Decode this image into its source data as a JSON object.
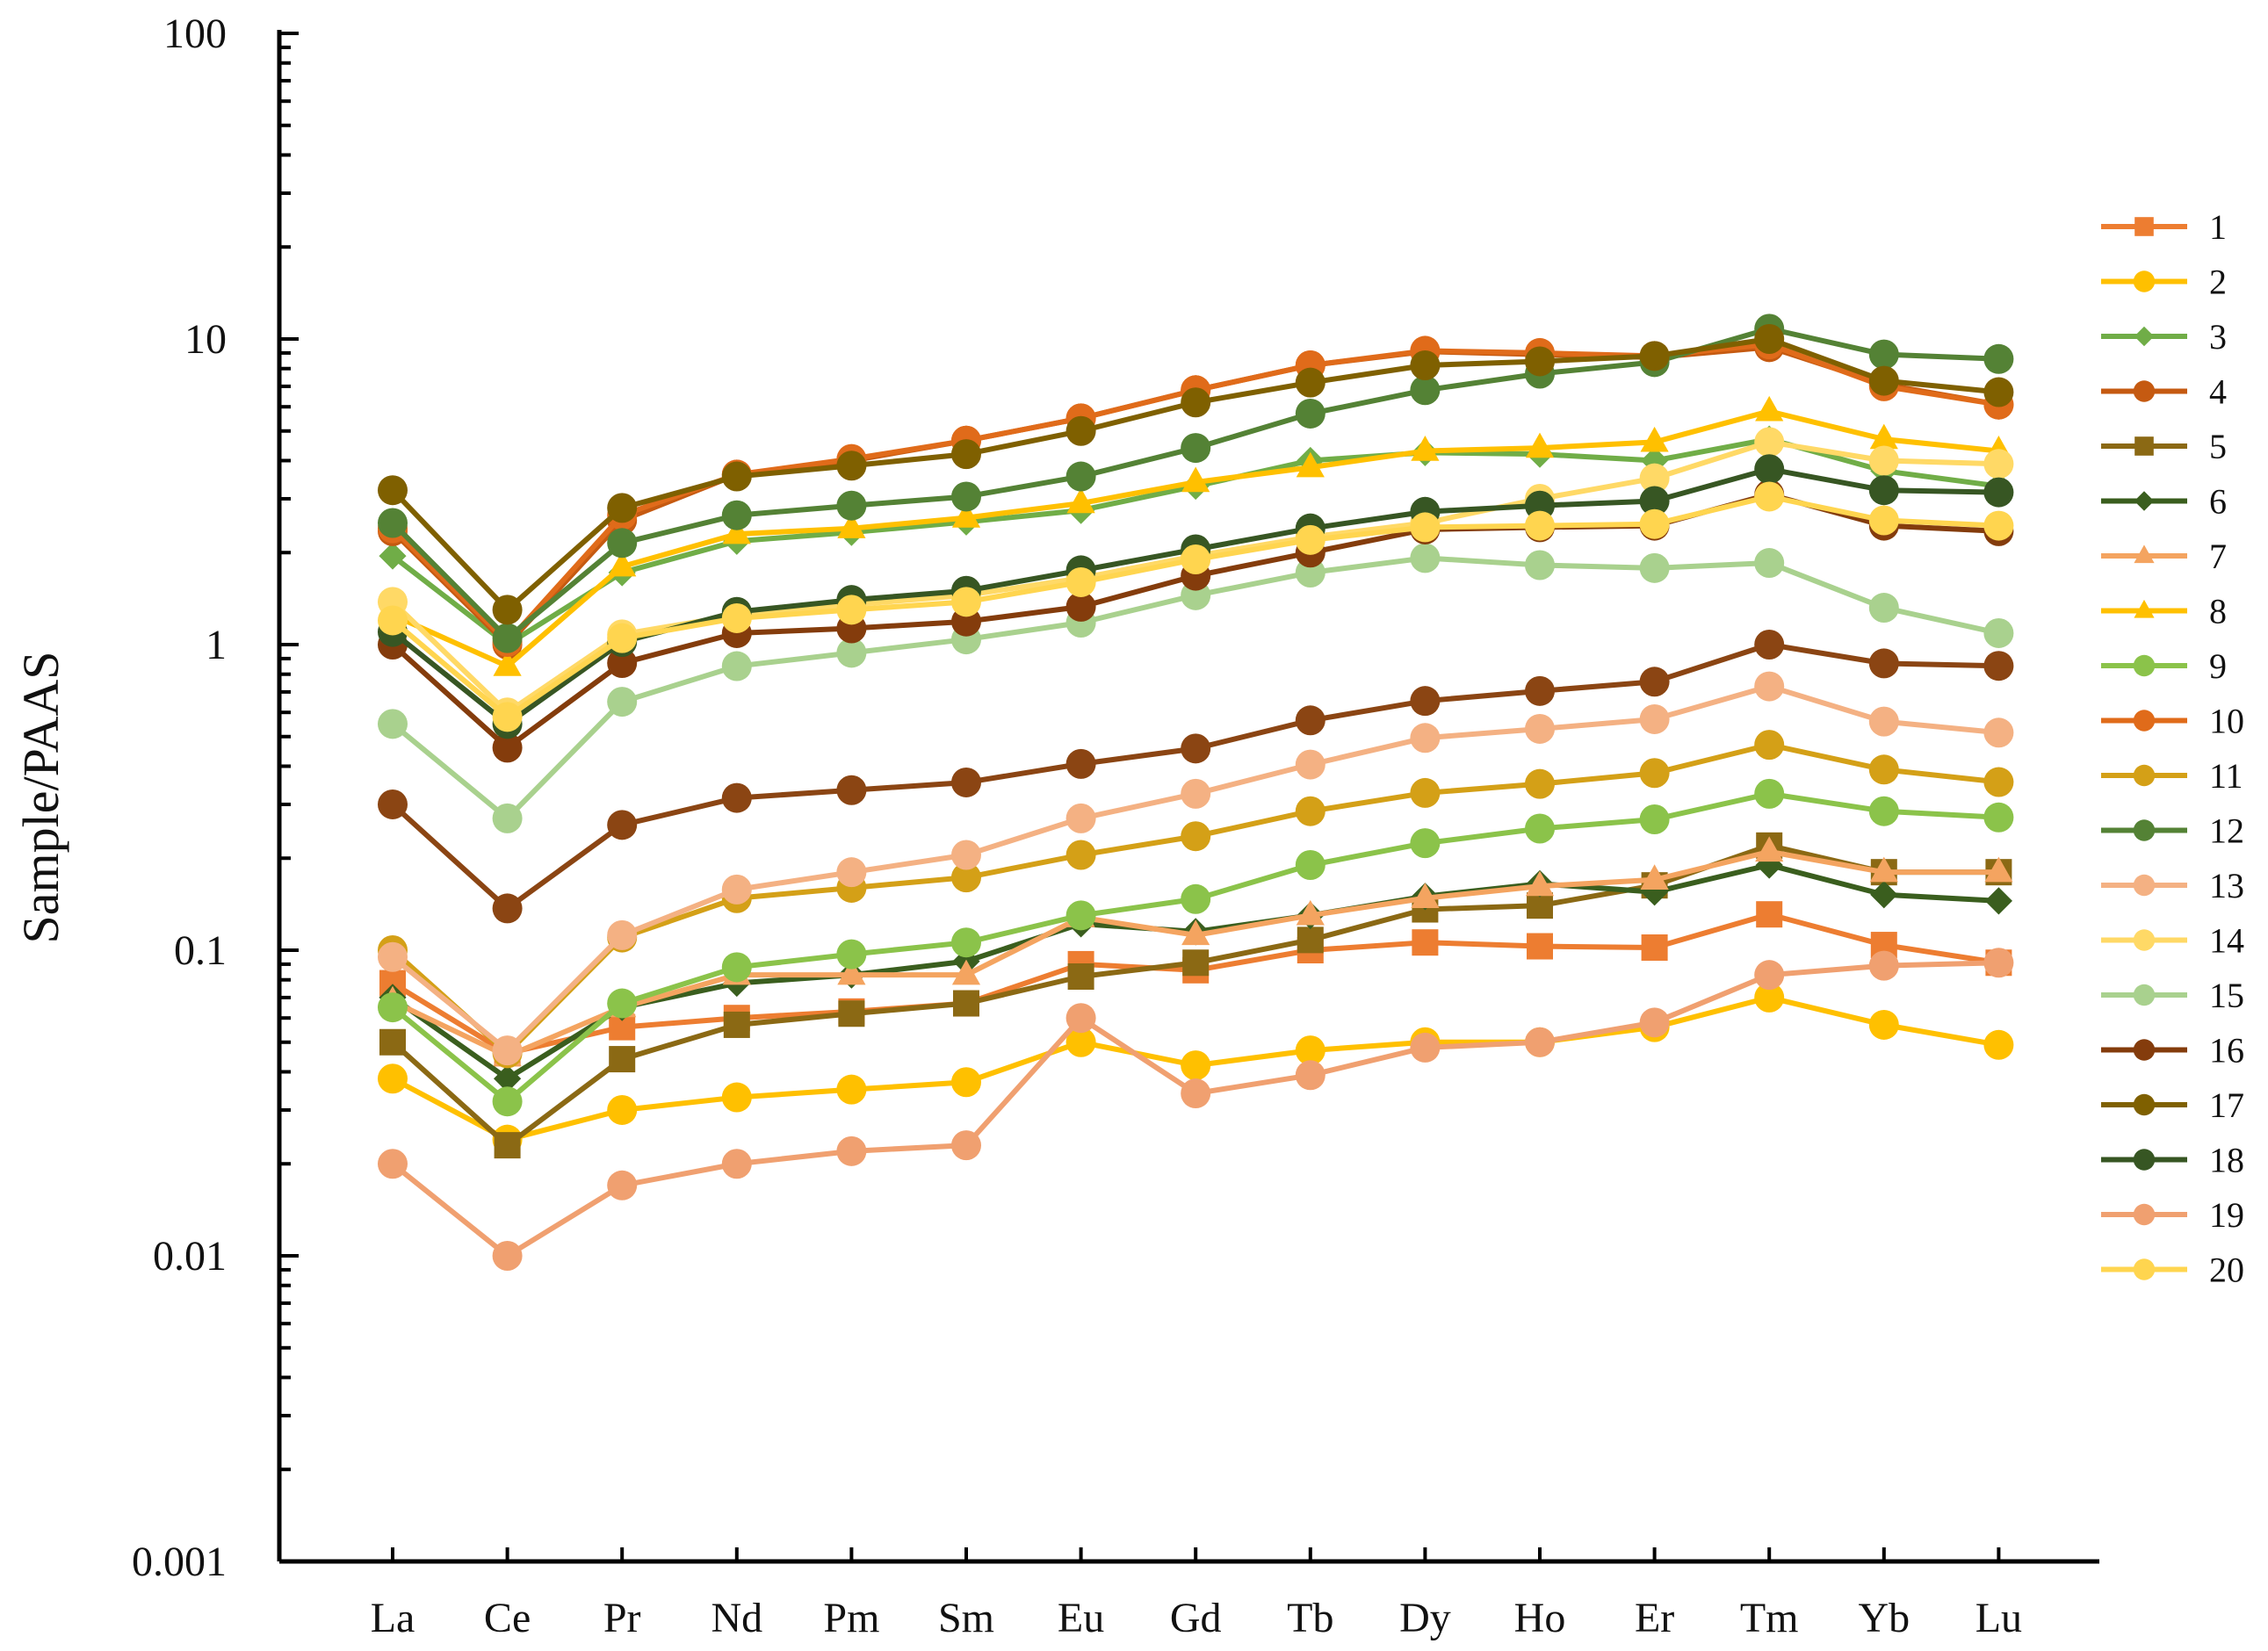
{
  "chart_data": {
    "type": "line",
    "title": "",
    "xlabel": "",
    "ylabel": "Sample/PAAS",
    "y_scale": "log",
    "ylim": [
      0.001,
      100
    ],
    "y_ticks": [
      "100",
      "10",
      "1",
      "0.1",
      "0.01",
      "0.001"
    ],
    "y_tick_values": [
      100,
      10,
      1,
      0.1,
      0.01,
      0.001
    ],
    "grid": false,
    "legend_position": "right",
    "categories": [
      "La",
      "Ce",
      "Pr",
      "Nd",
      "Pm",
      "Sm",
      "Eu",
      "Gd",
      "Tb",
      "Dy",
      "Ho",
      "Er",
      "Tm",
      "Yb",
      "Lu"
    ],
    "series": [
      {
        "name": "1",
        "color": "#ED7D31",
        "marker": "square",
        "values": [
          0.078,
          0.046,
          0.056,
          0.06,
          0.063,
          0.067,
          0.09,
          0.086,
          0.1,
          0.106,
          0.103,
          0.102,
          0.131,
          0.104,
          0.091
        ]
      },
      {
        "name": "2",
        "color": "#FFC000",
        "marker": "circle",
        "values": [
          0.038,
          0.024,
          0.03,
          0.033,
          0.035,
          0.037,
          0.05,
          0.042,
          0.047,
          0.05,
          0.05,
          0.056,
          0.07,
          0.057,
          0.049
        ]
      },
      {
        "name": "3",
        "color": "#70AD47",
        "marker": "diamond",
        "values": [
          1.95,
          1.0,
          1.72,
          2.18,
          2.33,
          2.52,
          2.75,
          3.3,
          4.0,
          4.25,
          4.2,
          4.0,
          4.7,
          3.7,
          3.3
        ]
      },
      {
        "name": "4",
        "color": "#C55A11",
        "marker": "circle",
        "values": [
          2.35,
          1.0,
          2.55,
          3.6,
          4.0,
          4.65,
          5.5,
          6.8,
          8.2,
          9.1,
          8.9,
          8.7,
          9.4,
          7.1,
          6.1
        ]
      },
      {
        "name": "5",
        "color": "#8B6914",
        "marker": "square",
        "values": [
          0.05,
          0.023,
          0.044,
          0.057,
          0.062,
          0.067,
          0.082,
          0.091,
          0.108,
          0.136,
          0.14,
          0.163,
          0.22,
          0.18,
          0.18
        ]
      },
      {
        "name": "6",
        "color": "#3A5E1E",
        "marker": "diamond",
        "values": [
          0.07,
          0.038,
          0.065,
          0.078,
          0.083,
          0.092,
          0.122,
          0.115,
          0.13,
          0.15,
          0.165,
          0.155,
          0.19,
          0.152,
          0.145
        ]
      },
      {
        "name": "7",
        "color": "#F4A460",
        "marker": "triangle",
        "values": [
          0.068,
          0.045,
          0.065,
          0.083,
          0.083,
          0.083,
          0.128,
          0.112,
          0.13,
          0.148,
          0.162,
          0.17,
          0.21,
          0.18,
          0.18
        ]
      },
      {
        "name": "8",
        "color": "#FFC000",
        "marker": "triangle",
        "values": [
          1.25,
          0.85,
          1.8,
          2.3,
          2.4,
          2.6,
          2.9,
          3.4,
          3.8,
          4.3,
          4.4,
          4.6,
          5.8,
          4.7,
          4.3
        ]
      },
      {
        "name": "9",
        "color": "#8BC34A",
        "marker": "circle",
        "values": [
          0.065,
          0.032,
          0.067,
          0.088,
          0.097,
          0.106,
          0.13,
          0.147,
          0.19,
          0.224,
          0.25,
          0.268,
          0.325,
          0.285,
          0.272
        ]
      },
      {
        "name": "10",
        "color": "#E06B1A",
        "marker": "circle",
        "values": [
          2.4,
          1.02,
          2.65,
          3.6,
          4.05,
          4.65,
          5.5,
          6.8,
          8.2,
          9.15,
          9.0,
          8.8,
          9.6,
          7.0,
          6.1
        ]
      },
      {
        "name": "11",
        "color": "#D4A017",
        "marker": "circle",
        "values": [
          0.1,
          0.046,
          0.11,
          0.148,
          0.16,
          0.173,
          0.205,
          0.236,
          0.285,
          0.327,
          0.35,
          0.38,
          0.47,
          0.39,
          0.355
        ]
      },
      {
        "name": "12",
        "color": "#548235",
        "marker": "circle",
        "values": [
          2.5,
          1.05,
          2.15,
          2.65,
          2.85,
          3.05,
          3.55,
          4.4,
          5.7,
          6.8,
          7.7,
          8.4,
          10.8,
          8.9,
          8.6
        ]
      },
      {
        "name": "13",
        "color": "#F4B183",
        "marker": "circle",
        "values": [
          0.095,
          0.047,
          0.112,
          0.158,
          0.18,
          0.205,
          0.27,
          0.325,
          0.405,
          0.495,
          0.53,
          0.57,
          0.73,
          0.56,
          0.515
        ]
      },
      {
        "name": "14",
        "color": "#FFD966",
        "marker": "circle",
        "values": [
          1.38,
          0.6,
          1.08,
          1.25,
          1.35,
          1.45,
          1.65,
          1.95,
          2.25,
          2.5,
          3.0,
          3.5,
          4.6,
          4.0,
          3.9
        ]
      },
      {
        "name": "15",
        "color": "#A9D18E",
        "marker": "circle",
        "values": [
          0.55,
          0.27,
          0.65,
          0.85,
          0.94,
          1.04,
          1.18,
          1.45,
          1.72,
          1.92,
          1.82,
          1.78,
          1.85,
          1.32,
          1.09
        ]
      },
      {
        "name": "16",
        "color": "#843C0C",
        "marker": "circle",
        "values": [
          1.0,
          0.46,
          0.87,
          1.09,
          1.13,
          1.19,
          1.33,
          1.68,
          2.0,
          2.38,
          2.42,
          2.45,
          3.1,
          2.45,
          2.35
        ]
      },
      {
        "name": "17",
        "color": "#7F6000",
        "marker": "circle",
        "values": [
          3.2,
          1.3,
          2.8,
          3.55,
          3.85,
          4.2,
          5.0,
          6.2,
          7.2,
          8.2,
          8.45,
          8.8,
          10.0,
          7.3,
          6.7
        ]
      },
      {
        "name": "18",
        "color": "#375623",
        "marker": "circle",
        "values": [
          1.1,
          0.55,
          1.02,
          1.28,
          1.4,
          1.5,
          1.75,
          2.05,
          2.4,
          2.72,
          2.85,
          2.95,
          3.75,
          3.2,
          3.15
        ]
      },
      {
        "name": "19",
        "color": "#F0A070",
        "marker": "circle",
        "values": [
          0.02,
          0.01,
          0.017,
          0.02,
          0.022,
          0.023,
          0.06,
          0.034,
          0.039,
          0.048,
          0.05,
          0.058,
          0.083,
          0.089,
          0.091
        ]
      },
      {
        "name": "20",
        "color": "#FFD54F",
        "marker": "circle",
        "values": [
          1.2,
          0.58,
          1.05,
          1.22,
          1.3,
          1.38,
          1.6,
          1.9,
          2.2,
          2.42,
          2.45,
          2.48,
          3.05,
          2.55,
          2.45
        ]
      },
      {
        "name": "",
        "color": "#8B4513",
        "marker": "circle",
        "values": [
          0.3,
          0.137,
          0.257,
          0.315,
          0.334,
          0.354,
          0.407,
          0.457,
          0.565,
          0.654,
          0.705,
          0.756,
          1.0,
          0.868,
          0.852
        ]
      }
    ]
  }
}
